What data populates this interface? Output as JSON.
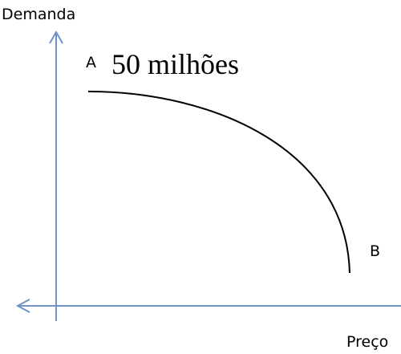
{
  "axes": {
    "y_label": "Demanda",
    "x_label": "Preço"
  },
  "points": [
    {
      "label": "A",
      "annotation": "50 milhões"
    },
    {
      "label": "B"
    }
  ]
}
